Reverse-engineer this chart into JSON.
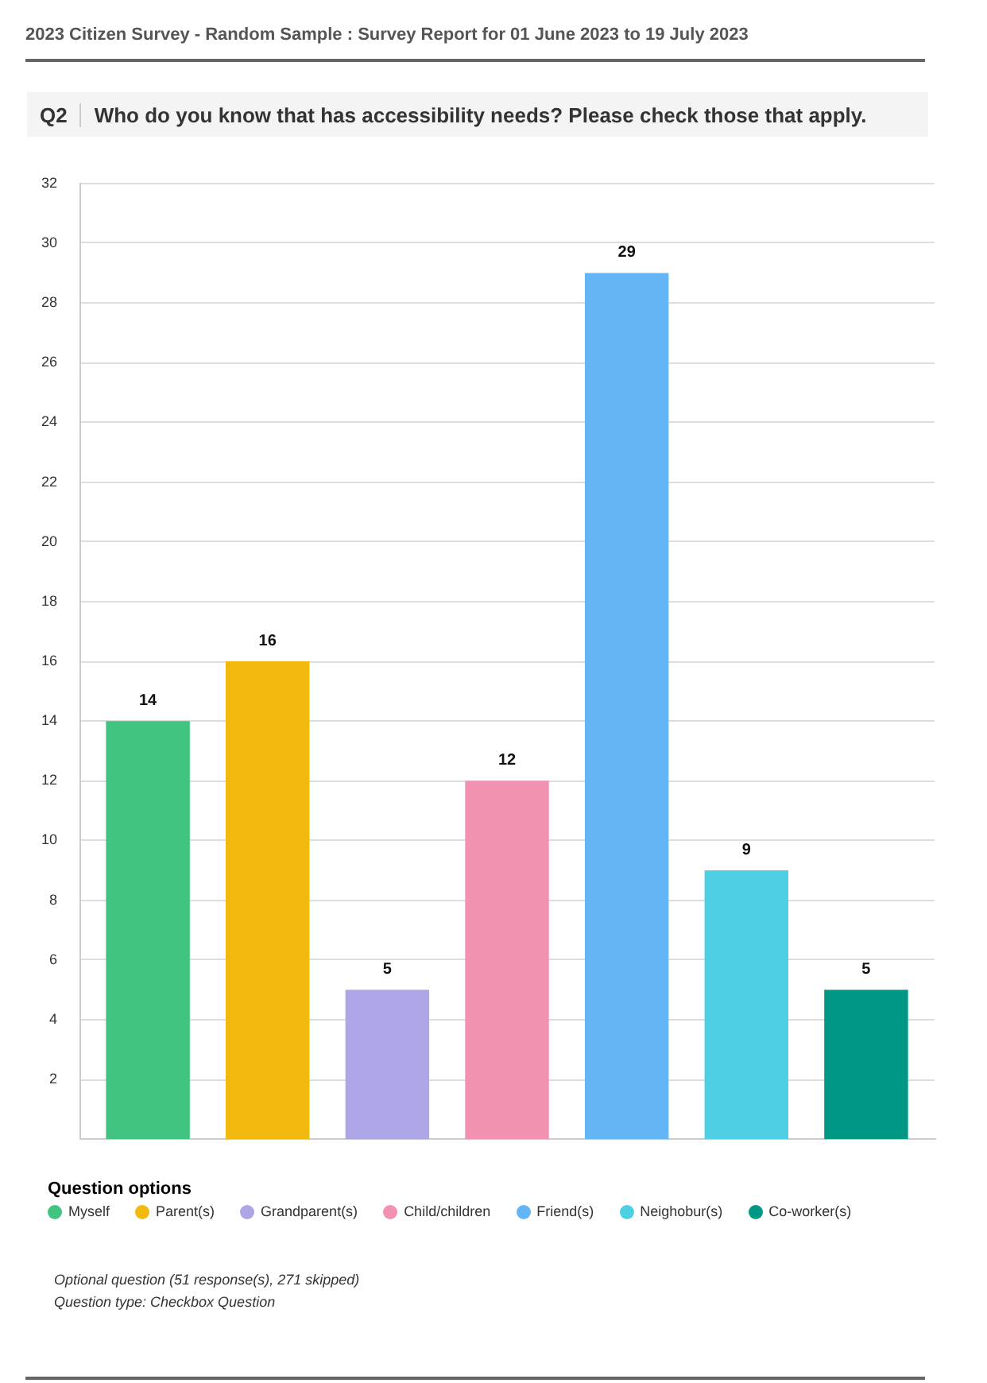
{
  "chart_data": {
    "type": "bar",
    "title": "2023 Citizen Survey - Random Sample : Survey Report for 01 June 2023 to 19 July 2023",
    "subtitle": "Who do you know that has accessibility needs? Please check those that apply.",
    "legend_title": "Question options",
    "categories": [
      null
    ],
    "series": [
      {
        "name": "Myself",
        "color": "#41c47f",
        "values": [
          14
        ]
      },
      {
        "name": "Parent(s)",
        "color": "#f2b90f",
        "values": [
          16
        ]
      },
      {
        "name": "Grandparent(s)",
        "color": "#ada6e6",
        "values": [
          5
        ]
      },
      {
        "name": "Child/children",
        "color": "#f291b0",
        "values": [
          12
        ]
      },
      {
        "name": "Friend(s)",
        "color": "#64b5f6",
        "values": [
          29
        ]
      },
      {
        "name": "Neighobur(s)",
        "color": "#4ecfe3",
        "values": [
          9
        ]
      },
      {
        "name": "Co-worker(s)",
        "color": "#009885",
        "values": [
          5
        ]
      }
    ],
    "ylim": [
      0,
      32
    ],
    "yticks": [
      2,
      4,
      6,
      8,
      10,
      12,
      14,
      16,
      18,
      20,
      22,
      24,
      26,
      28,
      30,
      32
    ],
    "grid": "y",
    "legend": "bottom",
    "tick_labels": "y",
    "data_labels": true,
    "annotations": [
      "Q2",
      "Optional question (51 response(s), 271 skipped)",
      "Question type: Checkbox Question"
    ]
  }
}
